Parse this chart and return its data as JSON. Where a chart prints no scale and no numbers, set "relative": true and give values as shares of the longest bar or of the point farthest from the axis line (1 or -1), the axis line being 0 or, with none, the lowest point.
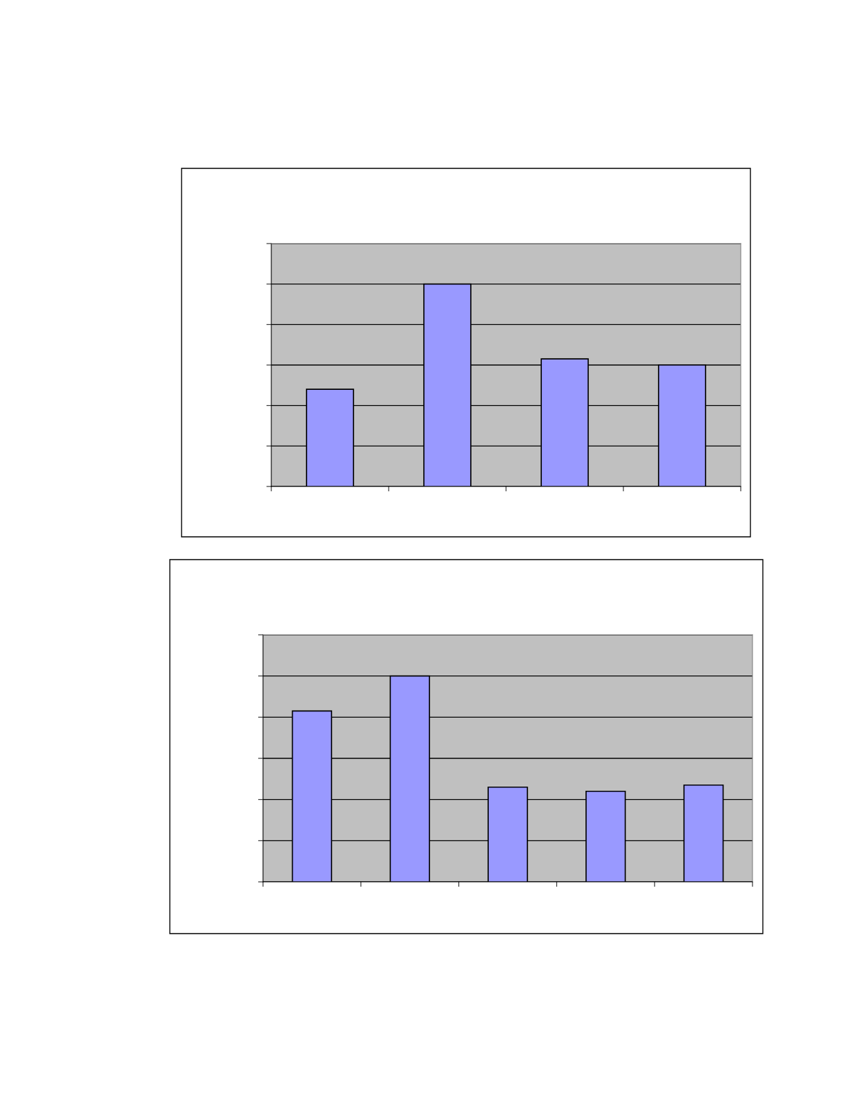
{
  "chart_data": [
    {
      "type": "bar",
      "relative": true,
      "grid": "y",
      "categories": [
        null,
        null,
        null,
        null
      ],
      "series": [
        {
          "color": "#9999ff",
          "values": [
            0.48,
            1,
            0.63,
            0.6
          ]
        }
      ]
    },
    {
      "type": "bar",
      "relative": true,
      "grid": "y",
      "categories": [
        null,
        null,
        null,
        null,
        null
      ],
      "series": [
        {
          "color": "#9999ff",
          "values": [
            0.83,
            1,
            0.46,
            0.44,
            0.47
          ]
        }
      ]
    }
  ]
}
